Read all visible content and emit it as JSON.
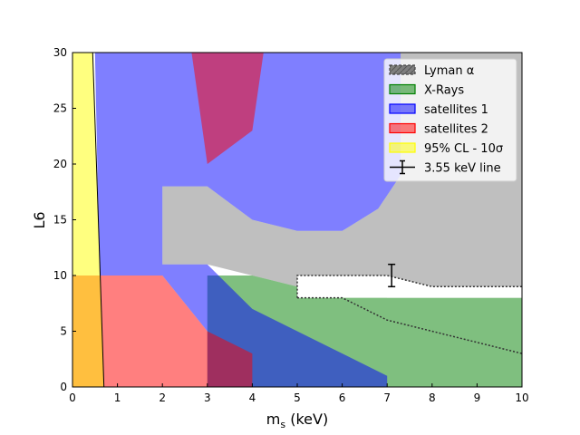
{
  "chart_data": {
    "type": "area",
    "xlabel": "m",
    "xlabel_sub": "s",
    "xlabel_unit": " (keV)",
    "ylabel": "L6",
    "xlim": [
      0,
      10
    ],
    "ylim": [
      0,
      30
    ],
    "x_ticks": [
      "0",
      "1",
      "2",
      "3",
      "4",
      "5",
      "6",
      "7",
      "8",
      "9",
      "10"
    ],
    "y_ticks": [
      "0",
      "5",
      "10",
      "15",
      "20",
      "25",
      "30"
    ],
    "legend_position": "upper-right",
    "regions": [
      {
        "name": "Lyman α",
        "legend": "Lyman α",
        "color": "#808080",
        "opacity": 0.5,
        "hatch": true,
        "polygon": [
          [
            2,
            11
          ],
          [
            3,
            11
          ],
          [
            5,
            9
          ],
          [
            6,
            9
          ],
          [
            7,
            8
          ],
          [
            8,
            8
          ],
          [
            10,
            8
          ],
          [
            10,
            30
          ],
          [
            7.3,
            30
          ],
          [
            7.3,
            19
          ],
          [
            6.8,
            16
          ],
          [
            6,
            14
          ],
          [
            5,
            14
          ],
          [
            4,
            15
          ],
          [
            3,
            18
          ],
          [
            2,
            18
          ]
        ]
      },
      {
        "name": "X-Rays",
        "legend": "X-Rays",
        "color": "#008000",
        "opacity": 0.5,
        "polygon": [
          [
            3,
            10
          ],
          [
            4,
            10
          ],
          [
            5,
            9
          ],
          [
            6,
            9
          ],
          [
            7,
            8
          ],
          [
            10,
            8
          ],
          [
            10,
            0
          ],
          [
            3,
            0
          ]
        ]
      },
      {
        "name": "satellites 1",
        "legend": "satellites 1",
        "color": "#0000ff",
        "opacity": 0.5,
        "polygon": [
          [
            0.5,
            30
          ],
          [
            7.3,
            30
          ],
          [
            7.3,
            19
          ],
          [
            6.8,
            16
          ],
          [
            6,
            14
          ],
          [
            5,
            14
          ],
          [
            4,
            15
          ],
          [
            3,
            18
          ],
          [
            2,
            18
          ],
          [
            2,
            11
          ],
          [
            3,
            11
          ],
          [
            4,
            7
          ],
          [
            7,
            1
          ],
          [
            7,
            0
          ],
          [
            3,
            0
          ],
          [
            3,
            5
          ],
          [
            2,
            10
          ],
          [
            0.6,
            10
          ]
        ]
      },
      {
        "name": "satellites 2",
        "legend": "satellites 2",
        "color": "#ff0000",
        "opacity": 0.5,
        "polygons": [
          [
            [
              2.65,
              30
            ],
            [
              4.25,
              30
            ],
            [
              4,
              23
            ],
            [
              3,
              20
            ]
          ],
          [
            [
              0,
              10
            ],
            [
              2,
              10
            ],
            [
              3,
              5
            ],
            [
              4,
              3
            ],
            [
              4,
              0
            ],
            [
              0,
              0
            ]
          ]
        ]
      },
      {
        "name": "95% CL - 10σ",
        "legend": "95% CL - 10σ",
        "color": "#ffff00",
        "opacity": 0.5,
        "polygon": [
          [
            0,
            0
          ],
          [
            0.7,
            0
          ],
          [
            0.45,
            30
          ],
          [
            0,
            30
          ]
        ]
      }
    ],
    "boundary_lines": [
      {
        "color": "#000000",
        "points": [
          [
            0.45,
            30
          ],
          [
            0.7,
            0
          ]
        ]
      }
    ],
    "dotted_lines": [
      {
        "points": [
          [
            5,
            8
          ],
          [
            5,
            10
          ],
          [
            7,
            10
          ],
          [
            8,
            9
          ],
          [
            10,
            9
          ]
        ]
      },
      {
        "points": [
          [
            5,
            8
          ],
          [
            6,
            8
          ],
          [
            7,
            6
          ],
          [
            8,
            5
          ],
          [
            10,
            3
          ]
        ]
      }
    ],
    "white_patch": [
      [
        5,
        8
      ],
      [
        6,
        8
      ],
      [
        7,
        8
      ],
      [
        10,
        8
      ],
      [
        10,
        9
      ],
      [
        8,
        9
      ],
      [
        7,
        10
      ],
      [
        5,
        10
      ]
    ],
    "errorbar": {
      "label": "3.55 keV line",
      "x": 7.1,
      "y": 9.8,
      "ylow": 9.0,
      "yhigh": 11.0
    }
  }
}
